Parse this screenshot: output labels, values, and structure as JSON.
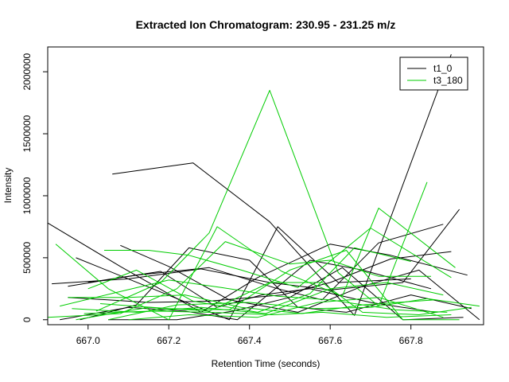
{
  "chart_data": {
    "type": "line",
    "title": "Extracted Ion Chromatogram: 230.95 - 231.25 m/z",
    "xlabel": "Retention Time (seconds)",
    "ylabel": "Intensity",
    "xlim": [
      666.9,
      667.98
    ],
    "ylim": [
      -40000,
      2200000
    ],
    "x_ticks": [
      667.0,
      667.2,
      667.4,
      667.6,
      667.8
    ],
    "x_tick_labels": [
      "667.0",
      "667.2",
      "667.4",
      "667.6",
      "667.8"
    ],
    "y_ticks": [
      0,
      500000,
      1000000,
      1500000,
      2000000
    ],
    "y_tick_labels": [
      "0",
      "500000",
      "1000000",
      "1500000",
      "2000000"
    ],
    "grid": false,
    "legend_position": "top-right",
    "series": [
      {
        "name": "t1_0",
        "color": "#000000",
        "segments": [
          [
            [
              667.06,
              1175000
            ],
            [
              667.26,
              1265000
            ],
            [
              667.45,
              790000
            ],
            [
              667.66,
              35000
            ],
            [
              667.9,
              2140000
            ]
          ],
          [
            [
              666.9,
              780000
            ],
            [
              667.08,
              430000
            ],
            [
              667.28,
              60000
            ],
            [
              667.42,
              340000
            ],
            [
              667.6,
              610000
            ],
            [
              667.75,
              520000
            ],
            [
              667.94,
              360000
            ]
          ],
          [
            [
              666.97,
              500000
            ],
            [
              667.16,
              250000
            ],
            [
              667.35,
              0
            ],
            [
              667.47,
              750000
            ],
            [
              667.62,
              300000
            ],
            [
              667.8,
              330000
            ]
          ],
          [
            [
              666.91,
              290000
            ],
            [
              667.1,
              330000
            ],
            [
              667.28,
              410000
            ],
            [
              667.45,
              300000
            ],
            [
              667.6,
              240000
            ],
            [
              667.78,
              300000
            ],
            [
              667.92,
              890000
            ]
          ],
          [
            [
              666.95,
              270000
            ],
            [
              667.12,
              360000
            ],
            [
              667.3,
              420000
            ],
            [
              667.47,
              250000
            ],
            [
              667.58,
              160000
            ],
            [
              667.72,
              620000
            ],
            [
              667.88,
              770000
            ]
          ],
          [
            [
              667.08,
              600000
            ],
            [
              667.2,
              430000
            ],
            [
              667.35,
              160000
            ],
            [
              667.52,
              60000
            ],
            [
              667.68,
              270000
            ],
            [
              667.82,
              400000
            ],
            [
              667.97,
              0
            ]
          ],
          [
            [
              666.98,
              0
            ],
            [
              667.12,
              120000
            ],
            [
              667.25,
              580000
            ],
            [
              667.4,
              480000
            ],
            [
              667.52,
              100000
            ],
            [
              667.64,
              60000
            ],
            [
              667.8,
              200000
            ],
            [
              667.95,
              90000
            ]
          ],
          [
            [
              666.95,
              180000
            ],
            [
              667.15,
              140000
            ],
            [
              667.3,
              150000
            ],
            [
              667.48,
              200000
            ],
            [
              667.6,
              300000
            ],
            [
              667.75,
              490000
            ],
            [
              667.9,
              550000
            ]
          ],
          [
            [
              666.93,
              0
            ],
            [
              667.1,
              100000
            ],
            [
              667.24,
              70000
            ],
            [
              667.37,
              0
            ],
            [
              667.55,
              480000
            ],
            [
              667.68,
              400000
            ],
            [
              667.85,
              250000
            ]
          ],
          [
            [
              667.0,
              300000
            ],
            [
              667.18,
              390000
            ],
            [
              667.32,
              100000
            ],
            [
              667.43,
              200000
            ],
            [
              667.55,
              250000
            ],
            [
              667.7,
              140000
            ],
            [
              667.86,
              60000
            ]
          ],
          [
            [
              667.05,
              0
            ],
            [
              667.22,
              0
            ],
            [
              667.36,
              70000
            ],
            [
              667.5,
              180000
            ],
            [
              667.63,
              420000
            ],
            [
              667.78,
              0
            ],
            [
              667.93,
              20000
            ]
          ]
        ]
      },
      {
        "name": "t3_180",
        "color": "#00cc00",
        "segments": [
          [
            [
              667.02,
              70000
            ],
            [
              667.18,
              300000
            ],
            [
              667.3,
              700000
            ],
            [
              667.45,
              1850000
            ],
            [
              667.62,
              380000
            ],
            [
              667.72,
              110000
            ],
            [
              667.84,
              1110000
            ]
          ],
          [
            [
              666.92,
              610000
            ],
            [
              667.05,
              250000
            ],
            [
              667.2,
              0
            ],
            [
              667.32,
              750000
            ],
            [
              667.48,
              390000
            ],
            [
              667.63,
              190000
            ],
            [
              667.72,
              900000
            ],
            [
              667.91,
              420000
            ]
          ],
          [
            [
              667.04,
              560000
            ],
            [
              667.15,
              560000
            ],
            [
              667.25,
              520000
            ],
            [
              667.38,
              400000
            ],
            [
              667.52,
              260000
            ],
            [
              667.7,
              740000
            ],
            [
              667.9,
              340000
            ]
          ],
          [
            [
              666.9,
              20000
            ],
            [
              667.08,
              50000
            ],
            [
              667.22,
              250000
            ],
            [
              667.34,
              630000
            ],
            [
              667.5,
              450000
            ],
            [
              667.6,
              480000
            ],
            [
              667.72,
              350000
            ],
            [
              667.85,
              350000
            ]
          ],
          [
            [
              666.97,
              0
            ],
            [
              667.15,
              100000
            ],
            [
              667.3,
              70000
            ],
            [
              667.45,
              300000
            ],
            [
              667.58,
              300000
            ],
            [
              667.68,
              60000
            ],
            [
              667.82,
              40000
            ],
            [
              667.95,
              100000
            ]
          ],
          [
            [
              667.0,
              250000
            ],
            [
              667.12,
              400000
            ],
            [
              667.26,
              150000
            ],
            [
              667.42,
              60000
            ],
            [
              667.55,
              210000
            ],
            [
              667.66,
              580000
            ],
            [
              667.8,
              470000
            ]
          ],
          [
            [
              666.95,
              180000
            ],
            [
              667.1,
              180000
            ],
            [
              667.24,
              200000
            ],
            [
              667.38,
              100000
            ],
            [
              667.53,
              50000
            ],
            [
              667.68,
              120000
            ],
            [
              667.86,
              160000
            ]
          ],
          [
            [
              667.03,
              130000
            ],
            [
              667.2,
              90000
            ],
            [
              667.35,
              80000
            ],
            [
              667.5,
              400000
            ],
            [
              667.64,
              560000
            ],
            [
              667.78,
              0
            ],
            [
              667.92,
              0
            ]
          ],
          [
            [
              666.99,
              50000
            ],
            [
              667.16,
              70000
            ],
            [
              667.3,
              60000
            ],
            [
              667.46,
              40000
            ],
            [
              667.58,
              60000
            ],
            [
              667.74,
              20000
            ],
            [
              667.9,
              40000
            ]
          ],
          [
            [
              667.05,
              0
            ],
            [
              667.22,
              120000
            ],
            [
              667.4,
              140000
            ],
            [
              667.56,
              90000
            ],
            [
              667.7,
              100000
            ],
            [
              667.84,
              170000
            ],
            [
              667.97,
              110000
            ]
          ],
          [
            [
              666.93,
              110000
            ],
            [
              667.07,
              220000
            ],
            [
              667.2,
              320000
            ],
            [
              667.33,
              260000
            ],
            [
              667.47,
              190000
            ],
            [
              667.6,
              160000
            ],
            [
              667.76,
              80000
            ],
            [
              667.89,
              60000
            ]
          ],
          [
            [
              667.1,
              0
            ],
            [
              667.25,
              40000
            ],
            [
              667.42,
              20000
            ],
            [
              667.57,
              140000
            ],
            [
              667.72,
              180000
            ],
            [
              667.88,
              20000
            ]
          ],
          [
            [
              666.96,
              90000
            ],
            [
              667.12,
              60000
            ],
            [
              667.28,
              100000
            ],
            [
              667.44,
              50000
            ],
            [
              667.6,
              250000
            ],
            [
              667.74,
              300000
            ],
            [
              667.88,
              200000
            ]
          ]
        ]
      }
    ]
  }
}
